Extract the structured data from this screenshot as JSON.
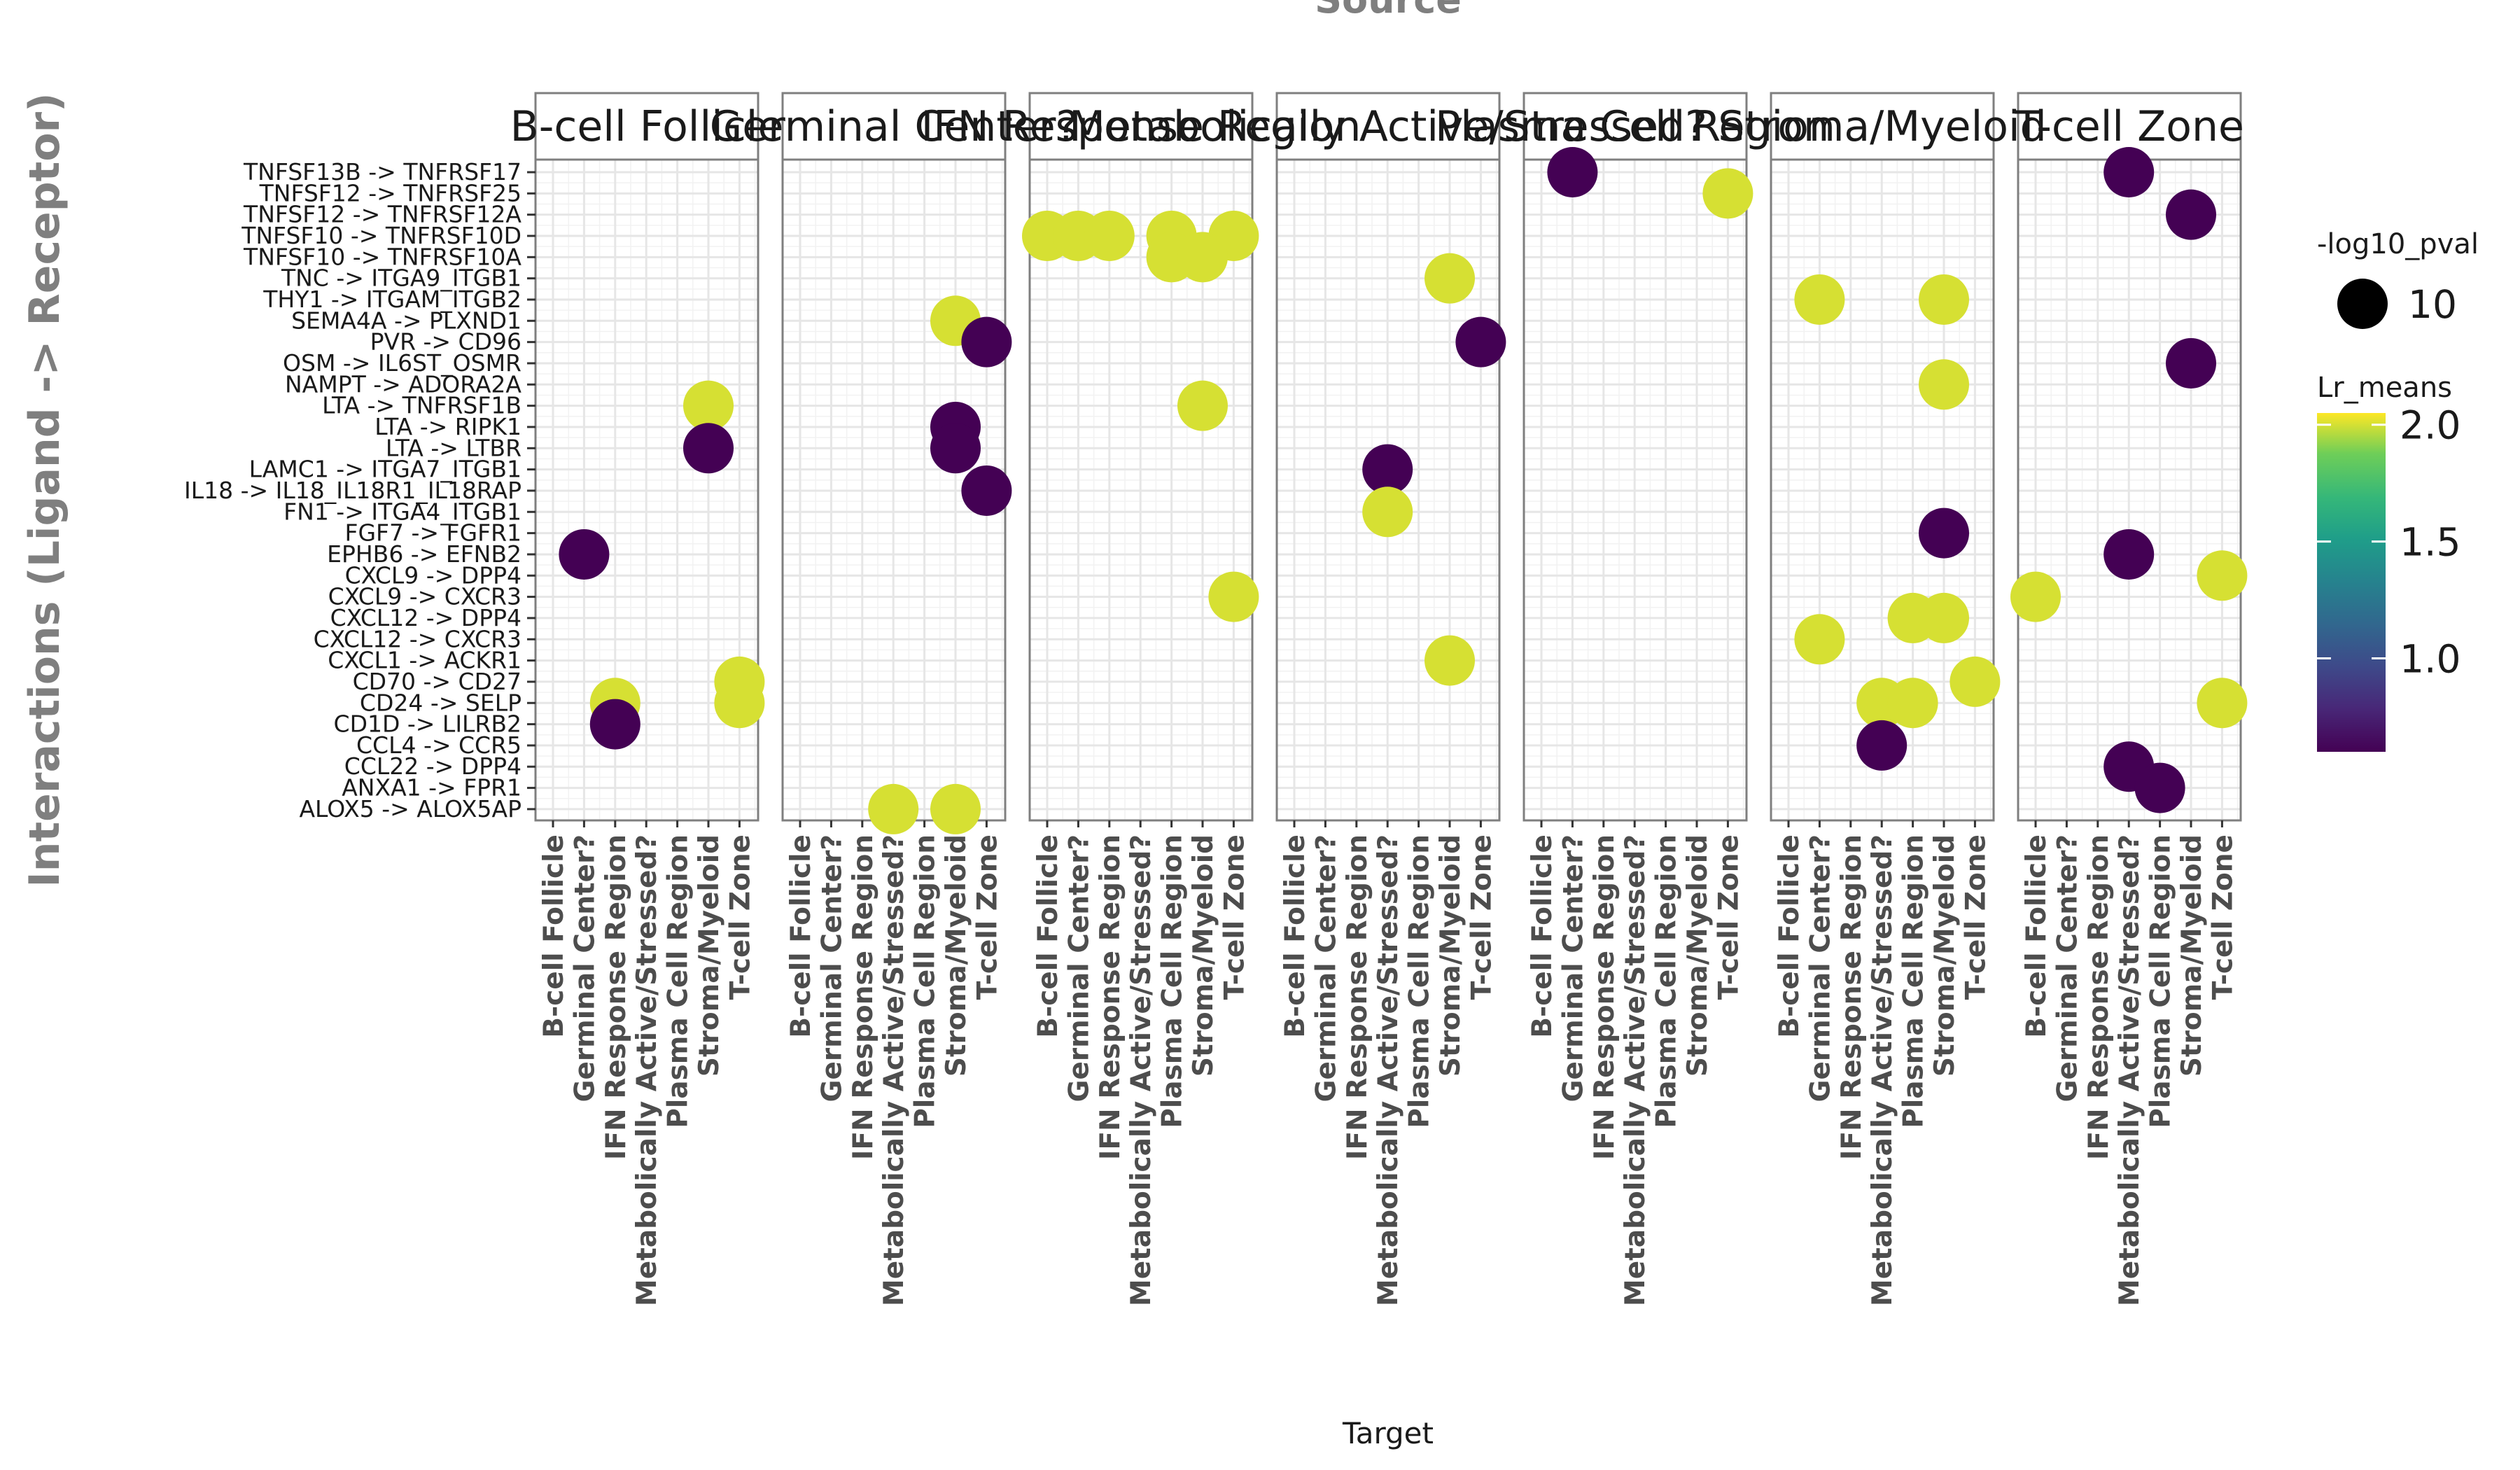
{
  "chart_data": {
    "type": "scatter",
    "title": "Source",
    "xlabel": "Target",
    "ylabel": "Interactions (Ligand -> Receptor)",
    "facets": [
      "B-cell Follicle",
      "Germinal Center?",
      "IFN Response Region",
      "Metabolically Active/Stressed?",
      "Plasma Cell Region",
      "Stroma/Myeloid",
      "T-cell Zone"
    ],
    "targets": [
      "B-cell Follicle",
      "Germinal Center?",
      "IFN Response Region",
      "Metabolically Active/Stressed?",
      "Plasma Cell Region",
      "Stroma/Myeloid",
      "T-cell Zone"
    ],
    "interactions": [
      "TNFSF13B -> TNFRSF17",
      "TNFSF12 -> TNFRSF25",
      "TNFSF12 -> TNFRSF12A",
      "TNFSF10 -> TNFRSF10D",
      "TNFSF10 -> TNFRSF10A",
      "TNC -> ITGA9_ITGB1",
      "THY1 -> ITGAM_ITGB2",
      "SEMA4A -> PLXND1",
      "PVR -> CD96",
      "OSM -> IL6ST_OSMR",
      "NAMPT -> ADORA2A",
      "LTA -> TNFRSF1B",
      "LTA -> RIPK1",
      "LTA -> LTBR",
      "LAMC1 -> ITGA7_ITGB1",
      "IL18 -> IL18_IL18R1_IL18RAP",
      "FN1 -> ITGA4_ITGB1",
      "FGF7 -> FGFR1",
      "EPHB6 -> EFNB2",
      "CXCL9 -> DPP4",
      "CXCL9 -> CXCR3",
      "CXCL12 -> DPP4",
      "CXCL12 -> CXCR3",
      "CXCL1 -> ACKR1",
      "CD70 -> CD27",
      "CD24 -> SELP",
      "CD1D -> LILRB2",
      "CCL4 -> CCR5",
      "CCL22 -> DPP4",
      "ANXA1 -> FPR1",
      "ALOX5 -> ALOX5AP"
    ],
    "size_legend": {
      "title": "-log10_pval",
      "values": [
        10
      ]
    },
    "color_legend": {
      "title": "Lr_means",
      "ticks": [
        1.0,
        1.5,
        2.0
      ],
      "range": [
        0.6,
        2.05
      ],
      "palette": "viridis"
    },
    "points": [
      {
        "source": "B-cell Follicle",
        "target": "IFN Response Region",
        "interaction": "CD24 -> SELP",
        "lr_means": 2.0,
        "neg_log10_pval": 10
      },
      {
        "source": "B-cell Follicle",
        "target": "IFN Response Region",
        "interaction": "CD1D -> LILRB2",
        "lr_means": 0.6,
        "neg_log10_pval": 10
      },
      {
        "source": "B-cell Follicle",
        "target": "Germinal Center?",
        "interaction": "EPHB6 -> EFNB2",
        "lr_means": 0.6,
        "neg_log10_pval": 10
      },
      {
        "source": "B-cell Follicle",
        "target": "Stroma/Myeloid",
        "interaction": "LTA -> TNFRSF1B",
        "lr_means": 2.0,
        "neg_log10_pval": 10
      },
      {
        "source": "B-cell Follicle",
        "target": "Stroma/Myeloid",
        "interaction": "LTA -> LTBR",
        "lr_means": 0.6,
        "neg_log10_pval": 10
      },
      {
        "source": "B-cell Follicle",
        "target": "T-cell Zone",
        "interaction": "CD70 -> CD27",
        "lr_means": 2.0,
        "neg_log10_pval": 10
      },
      {
        "source": "B-cell Follicle",
        "target": "T-cell Zone",
        "interaction": "CD24 -> SELP",
        "lr_means": 2.0,
        "neg_log10_pval": 10
      },
      {
        "source": "Germinal Center?",
        "target": "Stroma/Myeloid",
        "interaction": "SEMA4A -> PLXND1",
        "lr_means": 2.0,
        "neg_log10_pval": 10
      },
      {
        "source": "Germinal Center?",
        "target": "T-cell Zone",
        "interaction": "PVR -> CD96",
        "lr_means": 0.6,
        "neg_log10_pval": 10
      },
      {
        "source": "Germinal Center?",
        "target": "Stroma/Myeloid",
        "interaction": "LTA -> RIPK1",
        "lr_means": 0.6,
        "neg_log10_pval": 10
      },
      {
        "source": "Germinal Center?",
        "target": "Stroma/Myeloid",
        "interaction": "LTA -> LTBR",
        "lr_means": 0.6,
        "neg_log10_pval": 10
      },
      {
        "source": "Germinal Center?",
        "target": "T-cell Zone",
        "interaction": "IL18 -> IL18_IL18R1_IL18RAP",
        "lr_means": 0.6,
        "neg_log10_pval": 10
      },
      {
        "source": "Germinal Center?",
        "target": "Metabolically Active/Stressed?",
        "interaction": "ALOX5 -> ALOX5AP",
        "lr_means": 2.0,
        "neg_log10_pval": 10
      },
      {
        "source": "Germinal Center?",
        "target": "Stroma/Myeloid",
        "interaction": "ALOX5 -> ALOX5AP",
        "lr_means": 2.0,
        "neg_log10_pval": 10
      },
      {
        "source": "IFN Response Region",
        "target": "B-cell Follicle",
        "interaction": "TNFSF10 -> TNFRSF10D",
        "lr_means": 2.0,
        "neg_log10_pval": 10
      },
      {
        "source": "IFN Response Region",
        "target": "Germinal Center?",
        "interaction": "TNFSF10 -> TNFRSF10D",
        "lr_means": 2.0,
        "neg_log10_pval": 10
      },
      {
        "source": "IFN Response Region",
        "target": "IFN Response Region",
        "interaction": "TNFSF10 -> TNFRSF10D",
        "lr_means": 2.0,
        "neg_log10_pval": 10
      },
      {
        "source": "IFN Response Region",
        "target": "Plasma Cell Region",
        "interaction": "TNFSF10 -> TNFRSF10D",
        "lr_means": 2.0,
        "neg_log10_pval": 10
      },
      {
        "source": "IFN Response Region",
        "target": "T-cell Zone",
        "interaction": "TNFSF10 -> TNFRSF10D",
        "lr_means": 2.0,
        "neg_log10_pval": 10
      },
      {
        "source": "IFN Response Region",
        "target": "Plasma Cell Region",
        "interaction": "TNFSF10 -> TNFRSF10A",
        "lr_means": 2.0,
        "neg_log10_pval": 10
      },
      {
        "source": "IFN Response Region",
        "target": "Stroma/Myeloid",
        "interaction": "TNFSF10 -> TNFRSF10A",
        "lr_means": 2.0,
        "neg_log10_pval": 10
      },
      {
        "source": "IFN Response Region",
        "target": "Stroma/Myeloid",
        "interaction": "LTA -> TNFRSF1B",
        "lr_means": 2.0,
        "neg_log10_pval": 10
      },
      {
        "source": "IFN Response Region",
        "target": "T-cell Zone",
        "interaction": "CXCL9 -> CXCR3",
        "lr_means": 2.0,
        "neg_log10_pval": 10
      },
      {
        "source": "Metabolically Active/Stressed?",
        "target": "Stroma/Myeloid",
        "interaction": "TNC -> ITGA9_ITGB1",
        "lr_means": 2.0,
        "neg_log10_pval": 10
      },
      {
        "source": "Metabolically Active/Stressed?",
        "target": "T-cell Zone",
        "interaction": "PVR -> CD96",
        "lr_means": 0.6,
        "neg_log10_pval": 10
      },
      {
        "source": "Metabolically Active/Stressed?",
        "target": "Metabolically Active/Stressed?",
        "interaction": "LAMC1 -> ITGA7_ITGB1",
        "lr_means": 0.6,
        "neg_log10_pval": 10
      },
      {
        "source": "Metabolically Active/Stressed?",
        "target": "Metabolically Active/Stressed?",
        "interaction": "FN1 -> ITGA4_ITGB1",
        "lr_means": 2.0,
        "neg_log10_pval": 10
      },
      {
        "source": "Metabolically Active/Stressed?",
        "target": "Stroma/Myeloid",
        "interaction": "CXCL1 -> ACKR1",
        "lr_means": 2.0,
        "neg_log10_pval": 10
      },
      {
        "source": "Plasma Cell Region",
        "target": "Germinal Center?",
        "interaction": "TNFSF13B -> TNFRSF17",
        "lr_means": 0.6,
        "neg_log10_pval": 10
      },
      {
        "source": "Plasma Cell Region",
        "target": "T-cell Zone",
        "interaction": "TNFSF12 -> TNFRSF25",
        "lr_means": 2.0,
        "neg_log10_pval": 10
      },
      {
        "source": "Stroma/Myeloid",
        "target": "Germinal Center?",
        "interaction": "THY1 -> ITGAM_ITGB2",
        "lr_means": 2.0,
        "neg_log10_pval": 10
      },
      {
        "source": "Stroma/Myeloid",
        "target": "Stroma/Myeloid",
        "interaction": "THY1 -> ITGAM_ITGB2",
        "lr_means": 2.0,
        "neg_log10_pval": 10
      },
      {
        "source": "Stroma/Myeloid",
        "target": "Stroma/Myeloid",
        "interaction": "NAMPT -> ADORA2A",
        "lr_means": 2.0,
        "neg_log10_pval": 10
      },
      {
        "source": "Stroma/Myeloid",
        "target": "Stroma/Myeloid",
        "interaction": "FGF7 -> FGFR1",
        "lr_means": 0.6,
        "neg_log10_pval": 10
      },
      {
        "source": "Stroma/Myeloid",
        "target": "Plasma Cell Region",
        "interaction": "CXCL12 -> DPP4",
        "lr_means": 2.0,
        "neg_log10_pval": 10
      },
      {
        "source": "Stroma/Myeloid",
        "target": "Stroma/Myeloid",
        "interaction": "CXCL12 -> DPP4",
        "lr_means": 2.0,
        "neg_log10_pval": 10
      },
      {
        "source": "Stroma/Myeloid",
        "target": "Germinal Center?",
        "interaction": "CXCL12 -> CXCR3",
        "lr_means": 2.0,
        "neg_log10_pval": 10
      },
      {
        "source": "Stroma/Myeloid",
        "target": "T-cell Zone",
        "interaction": "CD70 -> CD27",
        "lr_means": 2.0,
        "neg_log10_pval": 10
      },
      {
        "source": "Stroma/Myeloid",
        "target": "Metabolically Active/Stressed?",
        "interaction": "CD24 -> SELP",
        "lr_means": 2.0,
        "neg_log10_pval": 10
      },
      {
        "source": "Stroma/Myeloid",
        "target": "Plasma Cell Region",
        "interaction": "CD24 -> SELP",
        "lr_means": 2.0,
        "neg_log10_pval": 10
      },
      {
        "source": "Stroma/Myeloid",
        "target": "Metabolically Active/Stressed?",
        "interaction": "CCL4 -> CCR5",
        "lr_means": 0.6,
        "neg_log10_pval": 10
      },
      {
        "source": "T-cell Zone",
        "target": "Metabolically Active/Stressed?",
        "interaction": "TNFSF13B -> TNFRSF17",
        "lr_means": 0.6,
        "neg_log10_pval": 10
      },
      {
        "source": "T-cell Zone",
        "target": "Stroma/Myeloid",
        "interaction": "TNFSF12 -> TNFRSF12A",
        "lr_means": 0.6,
        "neg_log10_pval": 10
      },
      {
        "source": "T-cell Zone",
        "target": "Stroma/Myeloid",
        "interaction": "OSM -> IL6ST_OSMR",
        "lr_means": 0.6,
        "neg_log10_pval": 10
      },
      {
        "source": "T-cell Zone",
        "target": "Metabolically Active/Stressed?",
        "interaction": "EPHB6 -> EFNB2",
        "lr_means": 0.6,
        "neg_log10_pval": 10
      },
      {
        "source": "T-cell Zone",
        "target": "T-cell Zone",
        "interaction": "CXCL9 -> DPP4",
        "lr_means": 2.0,
        "neg_log10_pval": 10
      },
      {
        "source": "T-cell Zone",
        "target": "B-cell Follicle",
        "interaction": "CXCL9 -> CXCR3",
        "lr_means": 2.0,
        "neg_log10_pval": 10
      },
      {
        "source": "T-cell Zone",
        "target": "T-cell Zone",
        "interaction": "CD24 -> SELP",
        "lr_means": 2.0,
        "neg_log10_pval": 10
      },
      {
        "source": "T-cell Zone",
        "target": "Metabolically Active/Stressed?",
        "interaction": "CCL22 -> DPP4",
        "lr_means": 0.6,
        "neg_log10_pval": 10
      },
      {
        "source": "T-cell Zone",
        "target": "Plasma Cell Region",
        "interaction": "ANXA1 -> FPR1",
        "lr_means": 0.6,
        "neg_log10_pval": 10
      }
    ]
  }
}
